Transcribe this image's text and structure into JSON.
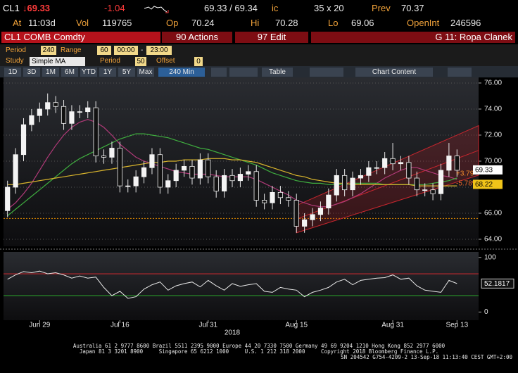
{
  "header": {
    "ticker": "CL1",
    "last": "↓69.33",
    "change": "-1.04",
    "bid_ask": "69.33 / 69.34",
    "ic": "ic",
    "size": "35 x 20",
    "prev_label": "Prev",
    "prev": "70.37",
    "at_label": "At",
    "time": "11:03d",
    "vol_label": "Vol",
    "vol": "119765",
    "op_label": "Op",
    "op": "70.24",
    "hi_label": "Hi",
    "hi": "70.28",
    "lo_label": "Lo",
    "lo": "69.06",
    "oi_label": "OpenInt",
    "oi": "246596"
  },
  "toolbar": {
    "security": "CL1 COMB Comdty",
    "actions": "90 Actions",
    "edit": "97 Edit",
    "page": "G 11: Ropa Clanek",
    "period_label": "Period",
    "period": "240",
    "range_label": "Range",
    "range": "60",
    "from": "00:00",
    "dash": "-",
    "to": "23:00",
    "study_label": "Study",
    "study": "Simple MA",
    "study_period_label": "Period",
    "study_period": "50",
    "offset_label": "Offset",
    "offset": "0",
    "ranges": [
      "1D",
      "3D",
      "1M",
      "6M",
      "YTD",
      "1Y",
      "5Y",
      "Max"
    ],
    "interval": "240 Min",
    "table": "Table",
    "chart_content": "Chart Content"
  },
  "chart_data": [
    {
      "type": "candlestick",
      "xlabel": "2018",
      "categories": [
        null,
        null,
        null,
        null,
        "Jun 29",
        null,
        null,
        null,
        null,
        null,
        null,
        null,
        null,
        null,
        "Jul 16",
        null,
        null,
        null,
        null,
        null,
        null,
        null,
        null,
        null,
        null,
        "Jul 31",
        null,
        null,
        null,
        null,
        null,
        null,
        null,
        null,
        null,
        null,
        "Aug 15",
        null,
        null,
        null,
        null,
        null,
        null,
        null,
        null,
        null,
        null,
        null,
        "Aug 31",
        null,
        null,
        null,
        null,
        null,
        null,
        null,
        "Sep 13"
      ],
      "open": [
        66.2,
        68.0,
        70.5,
        72.8,
        73.5,
        74.0,
        74.5,
        74.2,
        72.9,
        73.8,
        73.8,
        74.1,
        70.4,
        70.3,
        71.0,
        68.1,
        68.1,
        68.8,
        69.5,
        70.5,
        68.0,
        68.5,
        69.3,
        69.6,
        68.7,
        70.1,
        68.8,
        67.7,
        68.9,
        68.5,
        69.0,
        69.2,
        67.0,
        66.8,
        67.6,
        67.2,
        67.0,
        65.0,
        65.5,
        65.9,
        66.4,
        67.4,
        68.9,
        67.8,
        68.7,
        68.9,
        69.5,
        69.5,
        70.2,
        69.8,
        69.9,
        68.7,
        67.8,
        67.8,
        67.5,
        69.3,
        70.4
      ],
      "high": [
        68.5,
        71.0,
        73.3,
        74.0,
        74.5,
        75.2,
        75.0,
        74.7,
        74.3,
        74.3,
        74.6,
        74.6,
        70.9,
        71.5,
        71.5,
        68.6,
        69.3,
        70.0,
        71.0,
        71.0,
        69.0,
        69.8,
        70.1,
        70.1,
        70.6,
        70.6,
        69.3,
        69.4,
        69.4,
        69.5,
        69.7,
        69.7,
        67.5,
        68.1,
        68.1,
        67.7,
        67.5,
        66.0,
        66.4,
        66.9,
        67.9,
        69.4,
        69.4,
        69.2,
        69.4,
        70.0,
        70.0,
        70.7,
        71.4,
        70.4,
        70.4,
        69.2,
        68.3,
        68.3,
        69.8,
        71.4,
        70.9
      ],
      "low": [
        65.7,
        67.5,
        70.0,
        72.3,
        73.0,
        73.5,
        73.7,
        72.4,
        72.4,
        73.3,
        73.3,
        69.9,
        69.8,
        69.8,
        67.6,
        67.6,
        67.6,
        68.3,
        69.0,
        67.5,
        67.5,
        68.0,
        68.8,
        68.2,
        68.2,
        68.3,
        67.2,
        67.2,
        68.0,
        68.0,
        68.5,
        66.5,
        66.3,
        66.3,
        66.7,
        66.5,
        64.5,
        64.5,
        65.0,
        65.4,
        65.9,
        66.9,
        67.3,
        67.3,
        68.2,
        68.4,
        69.0,
        69.0,
        69.3,
        69.3,
        68.2,
        67.3,
        67.3,
        67.0,
        67.0,
        68.8,
        68.8
      ],
      "close": [
        68.0,
        70.5,
        72.8,
        73.5,
        74.0,
        74.5,
        74.2,
        72.9,
        73.8,
        73.8,
        74.1,
        70.4,
        70.3,
        71.0,
        68.1,
        68.1,
        68.8,
        69.5,
        70.5,
        68.0,
        68.5,
        69.3,
        69.6,
        68.7,
        70.1,
        68.8,
        67.7,
        68.9,
        68.5,
        69.0,
        69.2,
        67.0,
        66.8,
        67.6,
        67.2,
        67.0,
        65.0,
        65.5,
        65.9,
        66.4,
        67.4,
        68.9,
        67.8,
        68.7,
        68.9,
        69.5,
        69.5,
        70.2,
        69.8,
        69.9,
        68.7,
        67.8,
        67.8,
        67.5,
        69.3,
        70.4,
        69.3
      ],
      "overlays": [
        {
          "color": "#b03a78",
          "values": [
            66.3,
            66.8,
            67.5,
            68.3,
            69.3,
            70.3,
            71.2,
            72.0,
            72.6,
            73.0,
            73.2,
            73.0,
            72.6,
            72.0,
            71.3,
            70.8,
            70.3,
            70.0,
            69.8,
            69.6,
            69.4,
            69.2,
            69.1,
            69.0,
            69.0,
            69.0,
            68.9,
            68.8,
            68.8,
            68.8,
            68.8,
            68.6,
            68.3,
            68.0,
            67.7,
            67.4,
            67.0,
            66.8,
            66.6,
            66.5,
            66.5,
            66.7,
            66.9,
            67.2,
            67.5,
            67.9,
            68.3,
            68.7,
            69.0,
            69.3,
            69.5,
            69.5,
            69.3,
            69.1,
            68.9,
            68.8,
            68.6
          ]
        },
        {
          "color": "#3fae3f",
          "values": [
            65.8,
            66.3,
            66.8,
            67.3,
            67.8,
            68.3,
            68.8,
            69.3,
            69.8,
            70.2,
            70.5,
            70.8,
            71.1,
            71.4,
            71.7,
            71.9,
            72.1,
            72.1,
            72.0,
            71.9,
            71.8,
            71.6,
            71.4,
            71.2,
            71.0,
            70.9,
            70.7,
            70.5,
            70.3,
            70.1,
            69.9,
            69.7,
            69.4,
            69.1,
            68.9,
            68.7,
            68.5,
            68.4,
            68.3,
            68.3,
            68.2,
            68.2,
            68.2,
            68.3,
            68.3,
            68.3,
            68.3,
            68.2,
            68.2,
            68.2,
            68.2,
            68.2,
            68.2,
            68.3,
            68.4,
            68.5,
            68.7
          ]
        },
        {
          "color": "#d9b52c",
          "values": [
            68.2,
            68.2,
            68.3,
            68.4,
            68.5,
            68.6,
            68.7,
            68.8,
            68.9,
            69.0,
            69.1,
            69.2,
            69.3,
            69.4,
            69.5,
            69.6,
            69.7,
            69.8,
            69.9,
            69.9,
            70.0,
            70.0,
            70.1,
            70.1,
            70.1,
            70.2,
            70.2,
            70.2,
            70.1,
            70.1,
            70.0,
            69.9,
            69.7,
            69.5,
            69.3,
            69.1,
            68.9,
            68.8,
            68.6,
            68.5,
            68.4,
            68.3,
            68.3,
            68.2,
            68.2,
            68.2,
            68.2,
            68.2,
            68.2,
            68.2,
            68.2,
            68.1,
            68.1,
            68.1,
            68.1,
            68.1,
            68.1
          ]
        }
      ],
      "channel": {
        "color": "#c8262e",
        "start": 36,
        "end": 56,
        "upper": [
          66.6,
          72.0
        ],
        "lower": [
          64.5,
          68.4
        ]
      },
      "channel_labels": [
        "+3.79",
        "-5.78%"
      ],
      "hlines": [
        {
          "value": 65.6,
          "color": "#e08a00"
        }
      ],
      "price_tags": [
        {
          "value": 69.33,
          "color": "#ffffff"
        },
        {
          "value": 68.22,
          "color": "#f0c419"
        }
      ],
      "ylim": [
        63.46,
        76.43
      ],
      "yticks": [
        {
          "value": 64,
          "label": "64.00"
        },
        {
          "value": 66,
          "label": "66.00"
        },
        {
          "value": 68,
          "label": "68.00"
        },
        {
          "value": 70,
          "label": "70.00"
        },
        {
          "value": 72,
          "label": "72.00"
        },
        {
          "value": 74,
          "label": "74.00"
        },
        {
          "value": 76,
          "label": "76.00"
        }
      ],
      "grid": true
    },
    {
      "type": "line",
      "color": "#e8e8e8",
      "values": [
        60,
        68,
        74,
        72,
        75,
        70,
        72,
        68,
        62,
        66,
        62,
        64,
        45,
        30,
        38,
        25,
        28,
        42,
        50,
        55,
        40,
        48,
        52,
        55,
        46,
        58,
        48,
        40,
        52,
        47,
        50,
        52,
        38,
        36,
        45,
        42,
        40,
        28,
        36,
        40,
        45,
        55,
        60,
        50,
        58,
        60,
        62,
        63,
        68,
        60,
        62,
        48,
        40,
        38,
        36,
        58,
        52.1817
      ],
      "hlines": [
        {
          "value": 70,
          "color": "#c0282d"
        },
        {
          "value": 30,
          "color": "#2a9a2a"
        }
      ],
      "ylim": [
        -15,
        110
      ],
      "yticks": [
        0,
        100
      ]
    }
  ],
  "footer": [
    "Australia 61 2 9777 8600 Brazil 5511 2395 9000 Europe 44 20 7330 7500 Germany 49 69 9204 1210 Hong Kong 852 2977 6000",
    "Japan 81 3 3201 8900     Singapore 65 6212 1000     U.S. 1 212 318 2000     Copyright 2018 Bloomberg Finance L.P.",
    "SN 204542 G754-4209-2 13-Sep-18 11:13:40 CEST GMT+2:00"
  ]
}
